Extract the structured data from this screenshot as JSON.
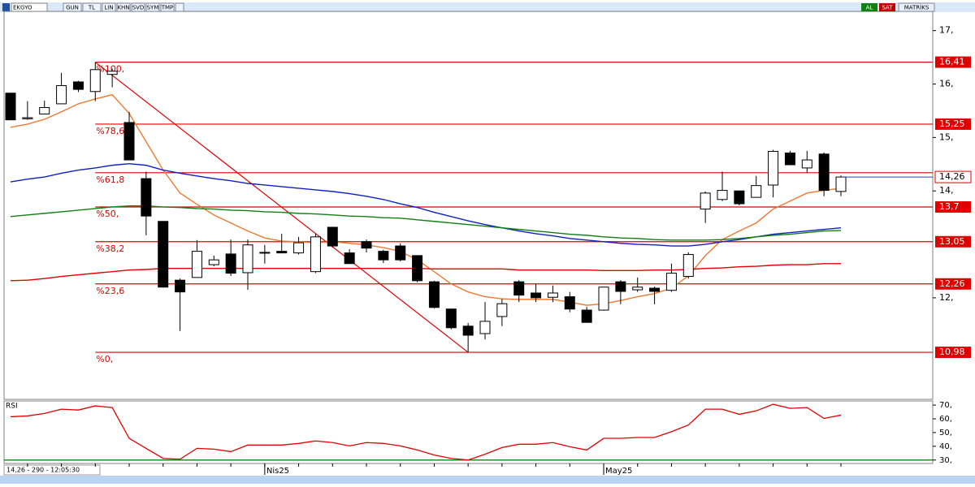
{
  "toolbar": {
    "symbol": "EKGYO",
    "buttons": [
      "GUN",
      "TL",
      "LIN",
      "KHN",
      "SVD",
      "SYM",
      "TMP"
    ],
    "actions": [
      "AL",
      "SAT"
    ],
    "brand": "MATRİKS"
  },
  "status": "14,26 - 290 - 12:05:30",
  "chart_data": {
    "type": "candlestick",
    "categories": [
      null,
      null,
      null,
      null,
      null,
      null,
      null,
      null,
      null,
      null,
      null,
      null,
      null,
      null,
      null,
      "Nis25",
      null,
      null,
      null,
      null,
      null,
      null,
      null,
      null,
      null,
      null,
      null,
      null,
      null,
      null,
      null,
      null,
      null,
      null,
      null,
      "May25",
      null,
      null,
      null,
      null,
      null,
      null,
      null,
      null,
      null,
      null,
      null,
      null,
      null,
      null
    ],
    "open": [
      15.83,
      15.35,
      15.44,
      15.63,
      16.04,
      15.86,
      16.18,
      15.28,
      14.23,
      13.43,
      12.33,
      12.38,
      12.62,
      12.82,
      12.47,
      12.84,
      12.87,
      12.84,
      12.49,
      13.32,
      12.84,
      13.05,
      12.87,
      12.97,
      12.79,
      12.3,
      11.79,
      11.47,
      11.33,
      11.65,
      12.3,
      12.09,
      12.01,
      12.02,
      11.77,
      11.77,
      12.3,
      12.15,
      12.18,
      12.14,
      12.4,
      13.66,
      13.84,
      14.0,
      13.88,
      14.11,
      14.71,
      14.43,
      14.69,
      13.99
    ],
    "high": [
      15.83,
      15.68,
      15.69,
      16.21,
      16.06,
      16.41,
      16.29,
      15.48,
      14.36,
      13.43,
      12.36,
      13.08,
      12.79,
      13.09,
      13.09,
      12.99,
      13.2,
      13.14,
      13.2,
      13.32,
      12.91,
      13.09,
      12.9,
      13.02,
      12.79,
      12.32,
      11.79,
      11.53,
      11.92,
      11.98,
      12.33,
      12.26,
      12.23,
      12.11,
      11.83,
      12.2,
      12.33,
      12.38,
      12.21,
      12.64,
      12.85,
      13.99,
      14.36,
      14.0,
      14.28,
      14.77,
      14.75,
      14.75,
      14.72,
      14.29
    ],
    "low": [
      15.33,
      15.33,
      15.43,
      15.63,
      15.85,
      15.68,
      15.94,
      14.58,
      13.17,
      12.2,
      11.38,
      12.38,
      12.59,
      12.41,
      12.15,
      12.64,
      12.84,
      12.81,
      12.46,
      12.94,
      12.64,
      12.85,
      12.65,
      12.68,
      12.29,
      11.8,
      11.41,
      10.98,
      11.22,
      11.47,
      11.92,
      11.92,
      11.92,
      11.73,
      11.54,
      11.76,
      11.88,
      12.11,
      11.88,
      12.11,
      12.36,
      13.4,
      13.81,
      13.73,
      13.88,
      13.88,
      14.49,
      14.34,
      13.9,
      13.9
    ],
    "close": [
      15.33,
      15.37,
      15.56,
      15.97,
      15.9,
      16.27,
      16.24,
      14.58,
      13.53,
      12.2,
      12.11,
      12.87,
      12.71,
      12.46,
      12.99,
      12.85,
      12.84,
      13.03,
      13.14,
      12.97,
      12.64,
      12.93,
      12.71,
      12.71,
      12.32,
      11.82,
      11.44,
      11.3,
      11.56,
      11.89,
      12.05,
      12.0,
      12.09,
      11.79,
      11.54,
      12.2,
      12.12,
      12.2,
      12.12,
      12.46,
      12.81,
      13.96,
      14.01,
      13.76,
      14.1,
      14.74,
      14.49,
      14.58,
      14.01,
      14.26
    ],
    "last_label": "14,26",
    "last_color": "#2040c0",
    "series": [
      {
        "color": "#f07830",
        "values": [
          15.19,
          15.25,
          15.34,
          15.48,
          15.63,
          15.72,
          15.8,
          15.45,
          14.92,
          14.39,
          13.96,
          13.75,
          13.55,
          13.4,
          13.25,
          13.12,
          13.06,
          13.05,
          13.03,
          13.05,
          13.02,
          12.99,
          12.94,
          12.87,
          12.71,
          12.49,
          12.26,
          12.11,
          12.02,
          11.98,
          11.97,
          11.97,
          11.97,
          11.92,
          11.86,
          11.89,
          11.95,
          12.02,
          12.08,
          12.18,
          12.41,
          12.79,
          13.09,
          13.25,
          13.4,
          13.66,
          13.81,
          13.96,
          14.01,
          14.05
        ]
      },
      {
        "color": "#1020c0",
        "values": [
          14.17,
          14.22,
          14.26,
          14.33,
          14.39,
          14.43,
          14.48,
          14.51,
          14.48,
          14.39,
          14.33,
          14.28,
          14.23,
          14.19,
          14.14,
          14.11,
          14.08,
          14.05,
          14.02,
          13.99,
          13.95,
          13.9,
          13.84,
          13.76,
          13.69,
          13.6,
          13.52,
          13.44,
          13.37,
          13.31,
          13.25,
          13.2,
          13.16,
          13.11,
          13.08,
          13.05,
          13.02,
          13.0,
          12.99,
          12.97,
          12.97,
          13.0,
          13.05,
          13.09,
          13.14,
          13.19,
          13.22,
          13.25,
          13.28,
          13.31
        ]
      },
      {
        "color": "#108010",
        "values": [
          13.52,
          13.55,
          13.58,
          13.61,
          13.64,
          13.67,
          13.7,
          13.72,
          13.72,
          13.7,
          13.69,
          13.67,
          13.66,
          13.64,
          13.63,
          13.61,
          13.6,
          13.58,
          13.57,
          13.55,
          13.53,
          13.52,
          13.5,
          13.49,
          13.46,
          13.43,
          13.4,
          13.37,
          13.34,
          13.31,
          13.28,
          13.25,
          13.22,
          13.19,
          13.17,
          13.14,
          13.12,
          13.11,
          13.09,
          13.08,
          13.08,
          13.08,
          13.09,
          13.11,
          13.14,
          13.17,
          13.19,
          13.22,
          13.25,
          13.26
        ]
      },
      {
        "color": "#e00000",
        "values": [
          12.32,
          12.33,
          12.36,
          12.4,
          12.43,
          12.46,
          12.49,
          12.52,
          12.53,
          12.55,
          12.55,
          12.55,
          12.55,
          12.55,
          12.55,
          12.55,
          12.55,
          12.55,
          12.55,
          12.55,
          12.55,
          12.55,
          12.55,
          12.55,
          12.55,
          12.54,
          12.54,
          12.54,
          12.54,
          12.54,
          12.52,
          12.52,
          12.52,
          12.52,
          12.52,
          12.51,
          12.51,
          12.51,
          12.52,
          12.52,
          12.53,
          12.55,
          12.56,
          12.58,
          12.59,
          12.61,
          12.62,
          12.62,
          12.64,
          12.64
        ]
      }
    ],
    "fib_color": "#e00000",
    "fib_levels": [
      {
        "value": 16.41,
        "name": "%100,",
        "label": "16,41"
      },
      {
        "value": 15.25,
        "name": "%78,6",
        "label": "15,25"
      },
      {
        "value": 14.34,
        "name": "%61,8"
      },
      {
        "value": 13.7,
        "name": "%50,",
        "label": "13,7"
      },
      {
        "value": 13.05,
        "name": "%38,2",
        "label": "13,05"
      },
      {
        "value": 12.26,
        "name": "%23,6",
        "label": "12,26"
      },
      {
        "value": 10.98,
        "name": "%0,",
        "label": "10,98"
      }
    ],
    "ylim": [
      10.1,
      17.36
    ],
    "yticks": [
      {
        "value": 17,
        "label": "17,"
      },
      {
        "value": 16,
        "label": "16,"
      },
      {
        "value": 15,
        "label": "15,"
      },
      {
        "value": 14,
        "label": "14,"
      },
      {
        "value": 12,
        "label": "12,"
      }
    ],
    "rsi": {
      "title": "RSI",
      "color": "#e00000",
      "level": 30,
      "level_color": "#009000",
      "values": [
        61.5,
        62.1,
        63.9,
        67,
        66.4,
        69.4,
        68.2,
        45.8,
        38.5,
        31.2,
        30.6,
        38.5,
        37.9,
        36.1,
        40.9,
        40.9,
        40.9,
        42.1,
        43.9,
        42.7,
        40.3,
        42.7,
        42.1,
        40.3,
        37.3,
        33.6,
        31.2,
        30,
        34.2,
        39.1,
        41.5,
        41.5,
        42.7,
        39.7,
        37.3,
        45.8,
        45.8,
        46.4,
        46.4,
        50.6,
        55.5,
        67,
        67,
        63.3,
        65.8,
        70.6,
        67.6,
        68.2,
        60.3,
        62.7
      ],
      "ylim": [
        27.5,
        73
      ],
      "yticks": [
        {
          "value": 70,
          "label": "70,"
        },
        {
          "value": 60,
          "label": "60,"
        },
        {
          "value": 50,
          "label": "50,"
        },
        {
          "value": 40,
          "label": "40,"
        },
        {
          "value": 30,
          "label": "30,"
        }
      ]
    }
  }
}
